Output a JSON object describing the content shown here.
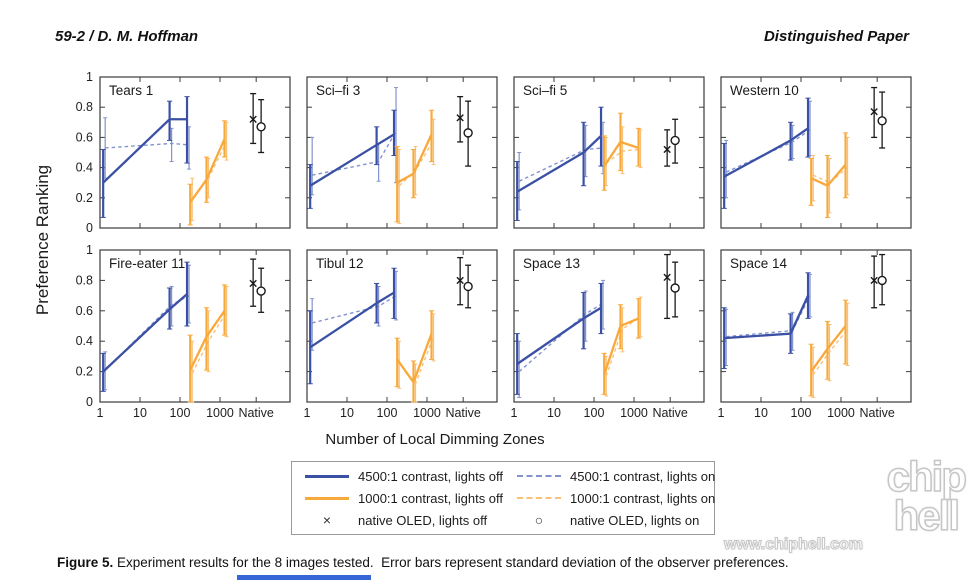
{
  "header": {
    "left": "59-2 / D. M. Hoffman",
    "right": "Distinguished Paper"
  },
  "colors": {
    "blue": "#3A50A4",
    "blue_light": "#8393CD",
    "orange": "#F8A93B",
    "orange_light": "#FAC077",
    "axis": "#3b3b3b",
    "native": "#1a1a1a",
    "text": "#1f1f1f",
    "bottom_bar": "#3565d6"
  },
  "chart_data": {
    "type": "line",
    "x_scale": "log-with-native-column",
    "grid": false,
    "xlabel": "Number of Local Dimming Zones",
    "ylabel": "Preference Ranking",
    "x_ticks": [
      "1",
      "10",
      "100",
      "1000",
      "Native"
    ],
    "y_ticks": [
      0,
      0.2,
      0.4,
      0.6,
      0.8,
      1
    ],
    "ylim": [
      0,
      1
    ],
    "blue_x": [
      1.2,
      55,
      150
    ],
    "orange_x": [
      180,
      460,
      1300
    ],
    "series_legend": [
      "4500:1 contrast, lights off",
      "4500:1 contrast, lights on",
      "1000:1 contrast, lights off",
      "1000:1 contrast, lights on"
    ],
    "subplots": [
      {
        "title": "Tears 1",
        "blue_solid": {
          "y": [
            0.3,
            0.72,
            0.72
          ],
          "lo": [
            0.07,
            0.58,
            0.43
          ],
          "hi": [
            0.52,
            0.84,
            0.87
          ]
        },
        "blue_dashed": {
          "y": [
            0.53,
            0.56,
            0.55
          ],
          "lo": [
            0.33,
            0.44,
            0.39
          ],
          "hi": [
            0.73,
            0.66,
            0.67
          ]
        },
        "orange_solid": {
          "y": [
            0.17,
            0.32,
            0.59
          ],
          "lo": [
            0.02,
            0.17,
            0.47
          ],
          "hi": [
            0.29,
            0.47,
            0.71
          ]
        },
        "orange_dashed": {
          "y": [
            0.19,
            0.33,
            0.57
          ],
          "lo": [
            0.05,
            0.2,
            0.45
          ],
          "hi": [
            0.33,
            0.46,
            0.7
          ]
        },
        "native": [
          {
            "marker": "x",
            "y": 0.72,
            "lo": 0.56,
            "hi": 0.89
          },
          {
            "marker": "o",
            "y": 0.67,
            "lo": 0.5,
            "hi": 0.85
          }
        ]
      },
      {
        "title": "Sci–fi 3",
        "blue_solid": {
          "y": [
            0.28,
            0.55,
            0.62
          ],
          "lo": [
            0.13,
            0.42,
            0.48
          ],
          "hi": [
            0.42,
            0.67,
            0.78
          ]
        },
        "blue_dashed": {
          "y": [
            0.35,
            0.44,
            0.64
          ],
          "lo": [
            0.22,
            0.31,
            0.3
          ],
          "hi": [
            0.6,
            0.56,
            0.93
          ]
        },
        "orange_solid": {
          "y": [
            0.3,
            0.36,
            0.62
          ],
          "lo": [
            0.04,
            0.2,
            0.44
          ],
          "hi": [
            0.54,
            0.52,
            0.78
          ]
        },
        "orange_dashed": {
          "y": [
            0.28,
            0.38,
            0.58
          ],
          "lo": [
            0.03,
            0.22,
            0.42
          ],
          "hi": [
            0.52,
            0.54,
            0.72
          ]
        },
        "native": [
          {
            "marker": "x",
            "y": 0.73,
            "lo": 0.57,
            "hi": 0.87
          },
          {
            "marker": "o",
            "y": 0.63,
            "lo": 0.41,
            "hi": 0.84
          }
        ]
      },
      {
        "title": "Sci–fi 5",
        "blue_solid": {
          "y": [
            0.24,
            0.5,
            0.61
          ],
          "lo": [
            0.05,
            0.28,
            0.41
          ],
          "hi": [
            0.44,
            0.7,
            0.8
          ]
        },
        "blue_dashed": {
          "y": [
            0.31,
            0.52,
            0.53
          ],
          "lo": [
            0.12,
            0.34,
            0.36
          ],
          "hi": [
            0.5,
            0.68,
            0.7
          ]
        },
        "orange_solid": {
          "y": [
            0.41,
            0.57,
            0.53
          ],
          "lo": [
            0.25,
            0.38,
            0.41
          ],
          "hi": [
            0.61,
            0.76,
            0.66
          ]
        },
        "orange_dashed": {
          "y": [
            0.43,
            0.51,
            0.52
          ],
          "lo": [
            0.28,
            0.36,
            0.4
          ],
          "hi": [
            0.6,
            0.67,
            0.65
          ]
        },
        "native": [
          {
            "marker": "x",
            "y": 0.52,
            "lo": 0.41,
            "hi": 0.65
          },
          {
            "marker": "o",
            "y": 0.58,
            "lo": 0.43,
            "hi": 0.72
          }
        ]
      },
      {
        "title": "Western 10",
        "blue_solid": {
          "y": [
            0.34,
            0.58,
            0.66
          ],
          "lo": [
            0.13,
            0.45,
            0.47
          ],
          "hi": [
            0.56,
            0.7,
            0.86
          ]
        },
        "blue_dashed": {
          "y": [
            0.37,
            0.57,
            0.65
          ],
          "lo": [
            0.2,
            0.46,
            0.48
          ],
          "hi": [
            0.58,
            0.68,
            0.84
          ]
        },
        "orange_solid": {
          "y": [
            0.33,
            0.28,
            0.42
          ],
          "lo": [
            0.15,
            0.07,
            0.2
          ],
          "hi": [
            0.46,
            0.48,
            0.63
          ]
        },
        "orange_dashed": {
          "y": [
            0.35,
            0.3,
            0.4
          ],
          "lo": [
            0.18,
            0.1,
            0.22
          ],
          "hi": [
            0.48,
            0.46,
            0.6
          ]
        },
        "native": [
          {
            "marker": "x",
            "y": 0.77,
            "lo": 0.6,
            "hi": 0.93
          },
          {
            "marker": "o",
            "y": 0.71,
            "lo": 0.53,
            "hi": 0.9
          }
        ]
      },
      {
        "title": "Fire-eater 11",
        "blue_solid": {
          "y": [
            0.2,
            0.61,
            0.71
          ],
          "lo": [
            0.07,
            0.48,
            0.5
          ],
          "hi": [
            0.32,
            0.75,
            0.92
          ]
        },
        "blue_dashed": {
          "y": [
            0.21,
            0.64,
            0.7
          ],
          "lo": [
            0.08,
            0.5,
            0.52
          ],
          "hi": [
            0.33,
            0.76,
            0.9
          ]
        },
        "orange_solid": {
          "y": [
            0.21,
            0.43,
            0.6
          ],
          "lo": [
            0.0,
            0.21,
            0.44
          ],
          "hi": [
            0.44,
            0.62,
            0.77
          ]
        },
        "orange_dashed": {
          "y": [
            0.19,
            0.4,
            0.59
          ],
          "lo": [
            0.0,
            0.2,
            0.43
          ],
          "hi": [
            0.4,
            0.6,
            0.76
          ]
        },
        "native": [
          {
            "marker": "x",
            "y": 0.78,
            "lo": 0.63,
            "hi": 0.94
          },
          {
            "marker": "o",
            "y": 0.73,
            "lo": 0.59,
            "hi": 0.88
          }
        ]
      },
      {
        "title": "Tibul 12",
        "blue_solid": {
          "y": [
            0.36,
            0.65,
            0.72
          ],
          "lo": [
            0.12,
            0.52,
            0.55
          ],
          "hi": [
            0.6,
            0.78,
            0.88
          ]
        },
        "blue_dashed": {
          "y": [
            0.52,
            0.63,
            0.7
          ],
          "lo": [
            0.34,
            0.5,
            0.54
          ],
          "hi": [
            0.68,
            0.76,
            0.86
          ]
        },
        "orange_solid": {
          "y": [
            0.28,
            0.13,
            0.45
          ],
          "lo": [
            0.1,
            0.0,
            0.28
          ],
          "hi": [
            0.42,
            0.27,
            0.6
          ]
        },
        "orange_dashed": {
          "y": [
            0.26,
            0.12,
            0.43
          ],
          "lo": [
            0.09,
            0.0,
            0.27
          ],
          "hi": [
            0.4,
            0.25,
            0.58
          ]
        },
        "native": [
          {
            "marker": "x",
            "y": 0.8,
            "lo": 0.64,
            "hi": 0.95
          },
          {
            "marker": "o",
            "y": 0.76,
            "lo": 0.62,
            "hi": 0.9
          }
        ]
      },
      {
        "title": "Space 13",
        "blue_solid": {
          "y": [
            0.25,
            0.55,
            0.62
          ],
          "lo": [
            0.05,
            0.35,
            0.45
          ],
          "hi": [
            0.45,
            0.72,
            0.78
          ]
        },
        "blue_dashed": {
          "y": [
            0.2,
            0.58,
            0.65
          ],
          "lo": [
            0.03,
            0.4,
            0.48
          ],
          "hi": [
            0.4,
            0.73,
            0.8
          ]
        },
        "orange_solid": {
          "y": [
            0.18,
            0.5,
            0.55
          ],
          "lo": [
            0.05,
            0.35,
            0.42
          ],
          "hi": [
            0.32,
            0.64,
            0.68
          ]
        },
        "orange_dashed": {
          "y": [
            0.17,
            0.48,
            0.56
          ],
          "lo": [
            0.04,
            0.33,
            0.43
          ],
          "hi": [
            0.3,
            0.62,
            0.69
          ]
        },
        "native": [
          {
            "marker": "x",
            "y": 0.82,
            "lo": 0.55,
            "hi": 0.97
          },
          {
            "marker": "o",
            "y": 0.75,
            "lo": 0.56,
            "hi": 0.92
          }
        ]
      },
      {
        "title": "Space 14",
        "blue_solid": {
          "y": [
            0.42,
            0.45,
            0.7
          ],
          "lo": [
            0.22,
            0.32,
            0.55
          ],
          "hi": [
            0.62,
            0.58,
            0.85
          ]
        },
        "blue_dashed": {
          "y": [
            0.43,
            0.47,
            0.7
          ],
          "lo": [
            0.24,
            0.34,
            0.56
          ],
          "hi": [
            0.61,
            0.59,
            0.84
          ]
        },
        "orange_solid": {
          "y": [
            0.2,
            0.35,
            0.5
          ],
          "lo": [
            0.04,
            0.15,
            0.25
          ],
          "hi": [
            0.38,
            0.53,
            0.67
          ]
        },
        "orange_dashed": {
          "y": [
            0.18,
            0.33,
            0.48
          ],
          "lo": [
            0.03,
            0.14,
            0.24
          ],
          "hi": [
            0.36,
            0.51,
            0.65
          ]
        },
        "native": [
          {
            "marker": "x",
            "y": 0.8,
            "lo": 0.62,
            "hi": 0.96
          },
          {
            "marker": "o",
            "y": 0.8,
            "lo": 0.64,
            "hi": 0.97
          }
        ]
      }
    ]
  },
  "legend": {
    "items": [
      {
        "swatch": "line-solid-blue",
        "label": "4500:1 contrast, lights off"
      },
      {
        "swatch": "line-dashed-blue",
        "label": "4500:1 contrast, lights on"
      },
      {
        "swatch": "line-solid-orange",
        "label": "1000:1 contrast, lights off"
      },
      {
        "swatch": "line-dashed-orange",
        "label": "1000:1 contrast, lights on"
      },
      {
        "swatch": "marker-x",
        "marker": "×",
        "label": "native OLED, lights off"
      },
      {
        "swatch": "marker-o",
        "marker": "○",
        "label": "native OLED, lights on"
      }
    ]
  },
  "caption": {
    "label": "Figure 5.",
    "text": " Experiment results for the 8 images tested.  Error bars represent standard deviation of the observer preferences."
  },
  "watermark": {
    "line1": "chip",
    "line2": "hell",
    "url": "www.chiphell.com"
  }
}
